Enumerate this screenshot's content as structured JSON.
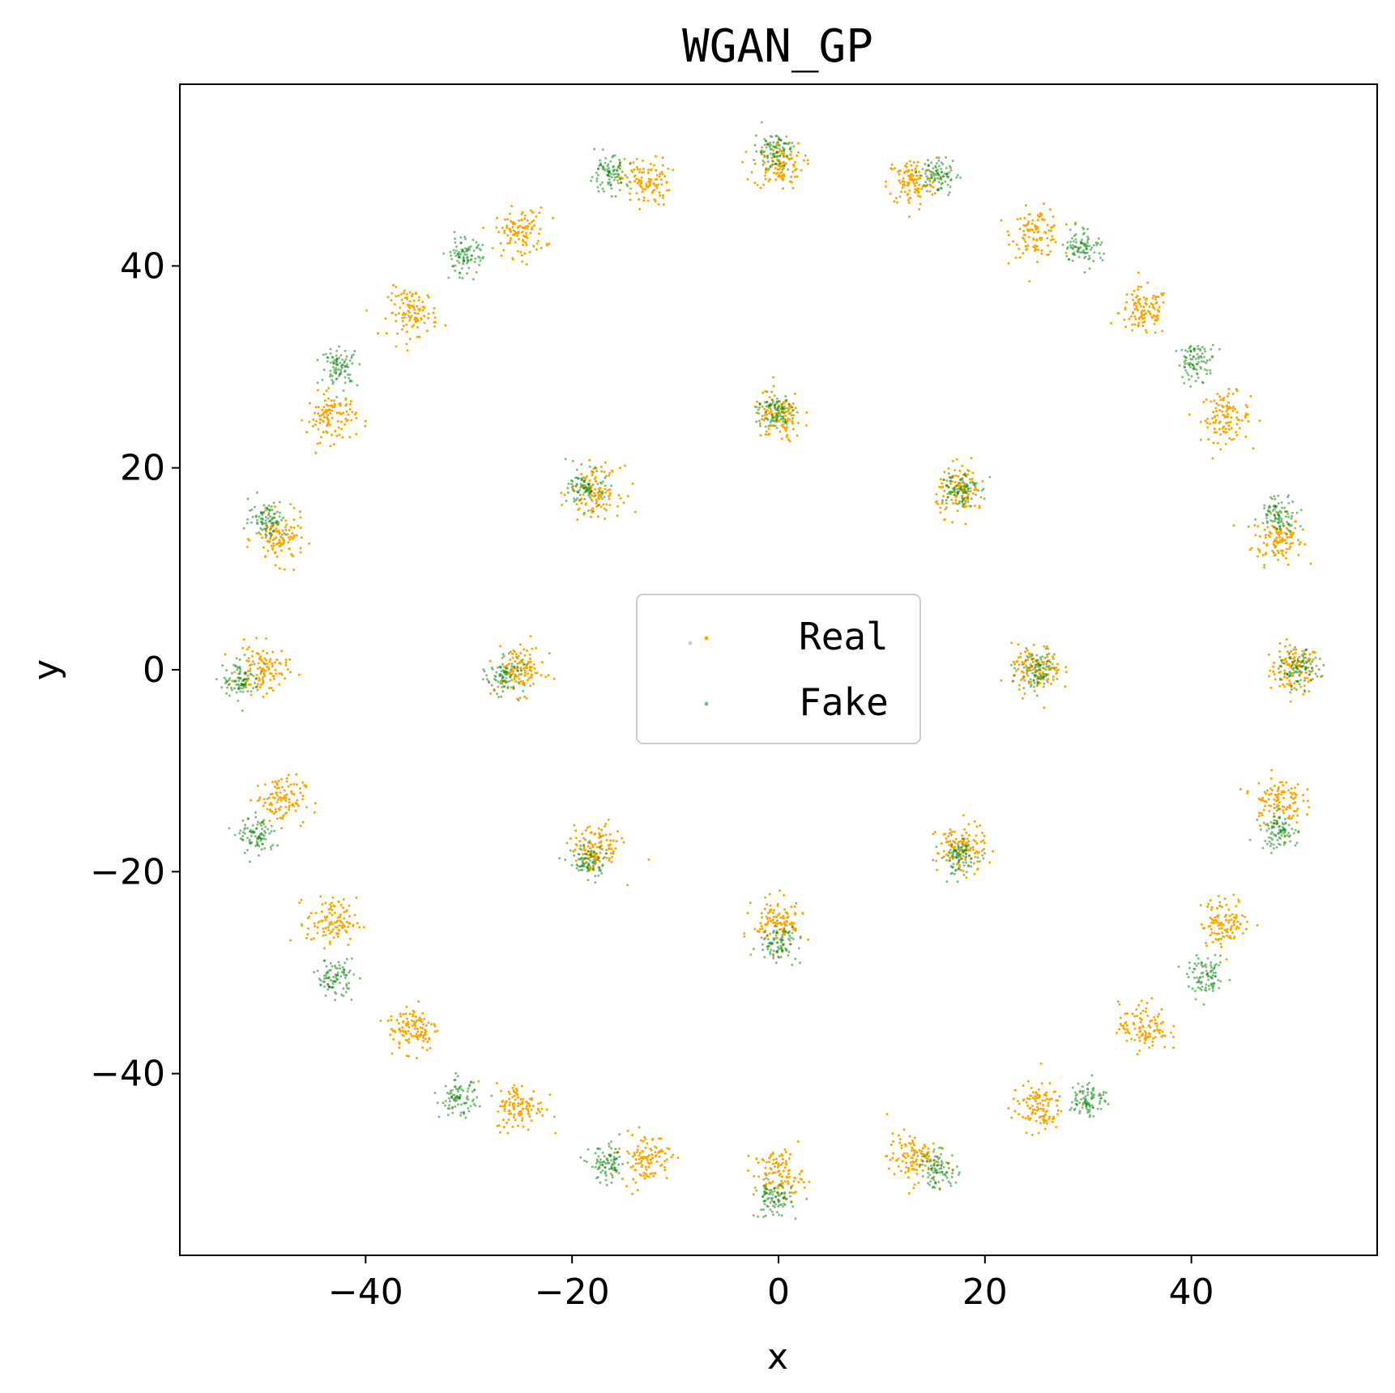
{
  "chart_data": {
    "type": "scatter",
    "title": "WGAN_GP",
    "xlabel": "x",
    "ylabel": "y",
    "xlim": [
      -58,
      58
    ],
    "ylim": [
      -58,
      58
    ],
    "xticks": [
      -40,
      -20,
      0,
      20,
      40
    ],
    "yticks": [
      -40,
      -20,
      0,
      20,
      40
    ],
    "xtick_labels": [
      "−40",
      "−20",
      "0",
      "20",
      "40"
    ],
    "ytick_labels": [
      "−40",
      "−20",
      "0",
      "20",
      "40"
    ],
    "grid": false,
    "legend": {
      "position": "center"
    },
    "series": [
      {
        "name": "Real",
        "color": "#ffa500",
        "marker_size": 1.5,
        "cluster_centers": [
          [
            50.0,
            0.0
          ],
          [
            48.3,
            12.9
          ],
          [
            43.3,
            25.0
          ],
          [
            35.4,
            35.4
          ],
          [
            25.0,
            43.3
          ],
          [
            12.9,
            48.3
          ],
          [
            0.0,
            50.0
          ],
          [
            -12.9,
            48.3
          ],
          [
            -25.0,
            43.3
          ],
          [
            -35.4,
            35.4
          ],
          [
            -43.3,
            25.0
          ],
          [
            -48.3,
            12.9
          ],
          [
            -50.0,
            0.0
          ],
          [
            -48.3,
            -12.9
          ],
          [
            -43.3,
            -25.0
          ],
          [
            -35.4,
            -35.4
          ],
          [
            -25.0,
            -43.3
          ],
          [
            -12.9,
            -48.3
          ],
          [
            0.0,
            -50.0
          ],
          [
            12.9,
            -48.3
          ],
          [
            25.0,
            -43.3
          ],
          [
            35.4,
            -35.4
          ],
          [
            43.3,
            -25.0
          ],
          [
            48.3,
            -12.9
          ],
          [
            25.0,
            0.0
          ],
          [
            17.7,
            17.7
          ],
          [
            0.0,
            25.0
          ],
          [
            -17.7,
            17.7
          ],
          [
            -25.0,
            0.0
          ],
          [
            -17.7,
            -17.7
          ],
          [
            0.0,
            -25.0
          ],
          [
            17.7,
            -17.7
          ]
        ],
        "cluster_spread": 1.2
      },
      {
        "name": "Fake",
        "color": "#008000",
        "opacity": 0.5,
        "marker_size": 1.5,
        "cluster_centers": [
          [
            50.5,
            0.0
          ],
          [
            48.5,
            15.5
          ],
          [
            40.5,
            30.5
          ],
          [
            29.5,
            42.0
          ],
          [
            15.5,
            49.0
          ],
          [
            -0.5,
            51.5
          ],
          [
            -16.5,
            49.0
          ],
          [
            -30.5,
            41.0
          ],
          [
            -42.5,
            30.0
          ],
          [
            -49.5,
            15.0
          ],
          [
            -52.0,
            -1.0
          ],
          [
            -50.5,
            -16.5
          ],
          [
            -43.0,
            -30.5
          ],
          [
            -31.0,
            -42.5
          ],
          [
            -16.5,
            -49.0
          ],
          [
            -0.5,
            -52.5
          ],
          [
            15.5,
            -49.5
          ],
          [
            30.0,
            -42.5
          ],
          [
            41.5,
            -30.5
          ],
          [
            48.5,
            -16.0
          ],
          [
            25.0,
            0.0
          ],
          [
            17.5,
            18.0
          ],
          [
            -0.5,
            25.5
          ],
          [
            -18.5,
            18.0
          ],
          [
            -26.5,
            -0.5
          ],
          [
            -18.5,
            -19.0
          ],
          [
            0.0,
            -27.0
          ],
          [
            17.5,
            -18.5
          ]
        ],
        "cluster_spread": 0.9
      }
    ]
  }
}
